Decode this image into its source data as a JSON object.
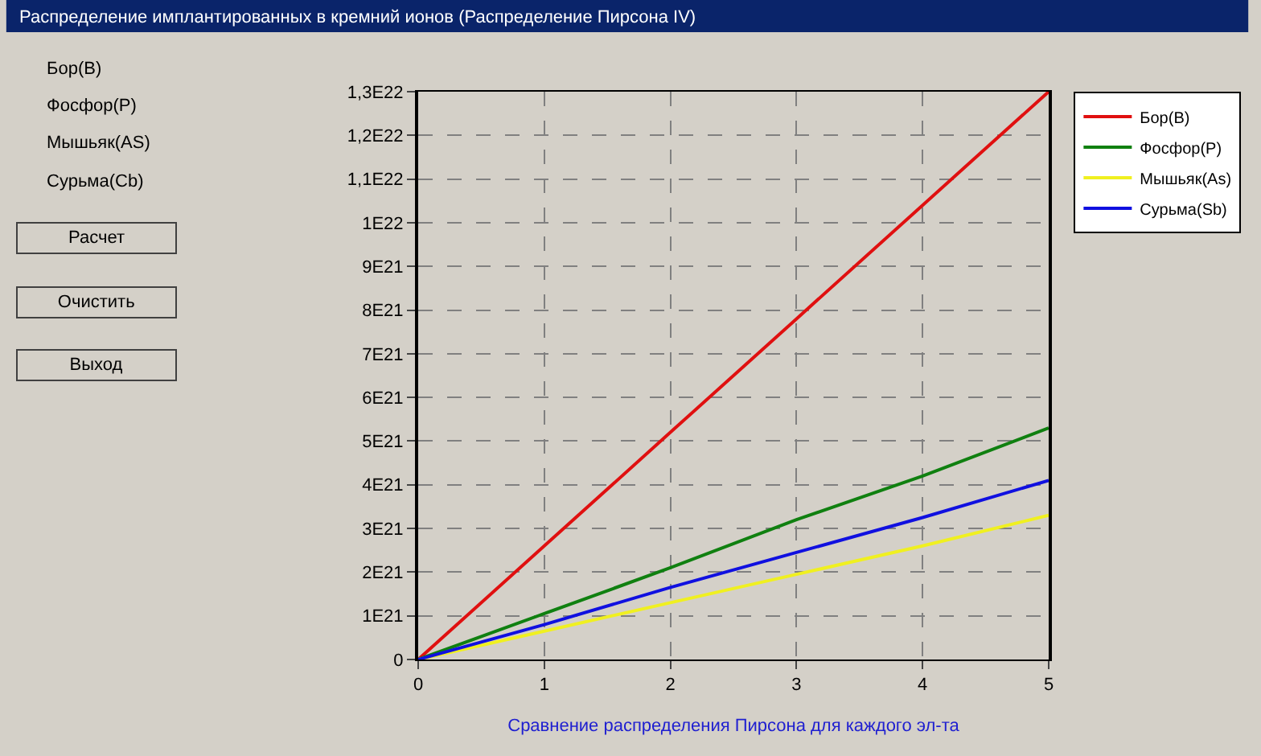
{
  "chart_data": {
    "type": "line",
    "title": "Распределение имплантированных в кремний ионов (Распределение Пирсона IV)",
    "xlabel": "Сравнение распределения Пирсона для каждого эл-та",
    "x": [
      0,
      1,
      2,
      3,
      4,
      5
    ],
    "series": [
      {
        "name": "Бор(В)",
        "color": "#e01010",
        "values": [
          0,
          2.6e+21,
          5.2e+21,
          7.8e+21,
          1.04e+22,
          1.3e+22
        ]
      },
      {
        "name": "Фосфор(Р)",
        "color": "#108010",
        "values": [
          0,
          1.05e+21,
          2.1e+21,
          3.2e+21,
          4.2e+21,
          5.3e+21
        ]
      },
      {
        "name": "Мышьяк(As)",
        "color": "#f0f020",
        "values": [
          0,
          6.5e+20,
          1.3e+21,
          1.95e+21,
          2.6e+21,
          3.3e+21
        ]
      },
      {
        "name": "Сурьма(Sb)",
        "color": "#1010e0",
        "values": [
          0,
          8e+20,
          1.65e+21,
          2.45e+21,
          3.25e+21,
          4.1e+21
        ]
      }
    ],
    "xlim": [
      0,
      5
    ],
    "xticks": [
      0,
      1,
      2,
      3,
      4,
      5
    ],
    "ylim": [
      0,
      1.3e+22
    ],
    "yticks": [
      0,
      {
        "value": 1e+21,
        "label": "1E21"
      },
      {
        "value": 2e+21,
        "label": "2E21"
      },
      {
        "value": 3e+21,
        "label": "3E21"
      },
      {
        "value": 4e+21,
        "label": "4E21"
      },
      {
        "value": 5e+21,
        "label": "5E21"
      },
      {
        "value": 6e+21,
        "label": "6E21"
      },
      {
        "value": 7e+21,
        "label": "7E21"
      },
      {
        "value": 8e+21,
        "label": "8E21"
      },
      {
        "value": 9e+21,
        "label": "9E21"
      },
      {
        "value": 1e+22,
        "label": "1E22"
      },
      {
        "value": 1.1e+22,
        "label": "1,1E22"
      },
      {
        "value": 1.2e+22,
        "label": "1,2E22"
      },
      {
        "value": 1.3e+22,
        "label": "1,3E22"
      }
    ],
    "grid": true,
    "legend": "top right",
    "marker": "none",
    "line_style": "solid",
    "annotations": [
      "Бор(В)",
      "Фосфор(Р)",
      "Мышьяк(AS)",
      "Сурьма(Cb)",
      "Расчет",
      "Очистить",
      "Выход"
    ]
  }
}
